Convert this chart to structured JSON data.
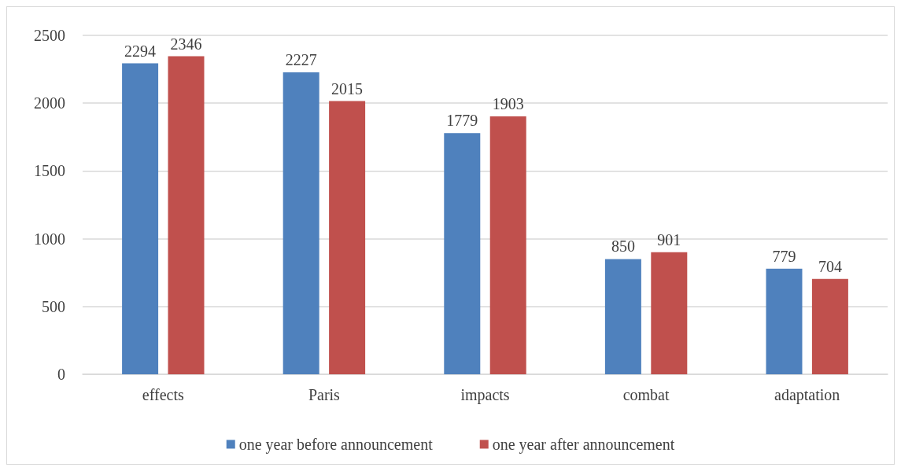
{
  "chart_data": {
    "type": "bar",
    "categories": [
      "effects",
      "Paris",
      "impacts",
      "combat",
      "adaptation"
    ],
    "series": [
      {
        "name": "one year before announcement",
        "color": "#4f81bd",
        "values": [
          2294,
          2227,
          1779,
          850,
          779
        ]
      },
      {
        "name": "one year after announcement",
        "color": "#c0504d",
        "values": [
          2346,
          2015,
          1903,
          901,
          704
        ]
      }
    ],
    "ylim": [
      0,
      2500
    ],
    "yticks": [
      0,
      500,
      1000,
      1500,
      2000,
      2500
    ],
    "grid": "y",
    "legend": "bottom",
    "data_labels": true
  }
}
